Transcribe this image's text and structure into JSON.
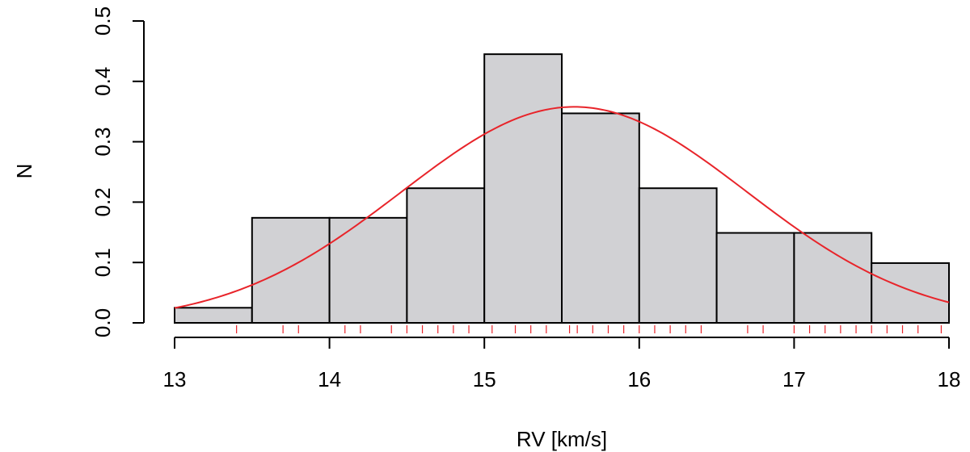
{
  "chart_data": {
    "type": "bar",
    "title": "",
    "xlabel": "RV [km/s]",
    "ylabel": "N",
    "bin_edges": [
      13,
      13.5,
      14,
      14.5,
      15,
      15.5,
      16,
      16.5,
      17,
      17.5,
      18
    ],
    "values": [
      0.025,
      0.174,
      0.174,
      0.223,
      0.445,
      0.347,
      0.223,
      0.149,
      0.149,
      0.099
    ],
    "xlim": [
      13,
      18
    ],
    "ylim": [
      0,
      0.5
    ],
    "x_ticks": [
      13,
      14,
      15,
      16,
      17,
      18
    ],
    "x_tick_labels": [
      "13",
      "14",
      "15",
      "16",
      "17",
      "18"
    ],
    "y_ticks": [
      0,
      0.1,
      0.2,
      0.3,
      0.4,
      0.5
    ],
    "y_tick_labels": [
      "0.0",
      "0.1",
      "0.2",
      "0.3",
      "0.4",
      "0.5"
    ],
    "fit_curve": {
      "type": "normal",
      "mean": 15.58,
      "sd": 1.115
    },
    "rug": [
      13.4,
      13.7,
      13.8,
      14.1,
      14.2,
      14.4,
      14.5,
      14.6,
      14.7,
      14.8,
      14.9,
      15.05,
      15.2,
      15.3,
      15.4,
      15.55,
      15.6,
      15.7,
      15.8,
      15.9,
      16.0,
      16.1,
      16.2,
      16.3,
      16.4,
      16.7,
      16.8,
      17.0,
      17.1,
      17.2,
      17.3,
      17.4,
      17.5,
      17.6,
      17.7,
      17.8,
      17.95
    ],
    "grid": false,
    "colors": {
      "bar_fill": "#d1d1d4",
      "bar_stroke": "#000000",
      "curve": "#e8242a",
      "rug": "#e8242a"
    }
  }
}
